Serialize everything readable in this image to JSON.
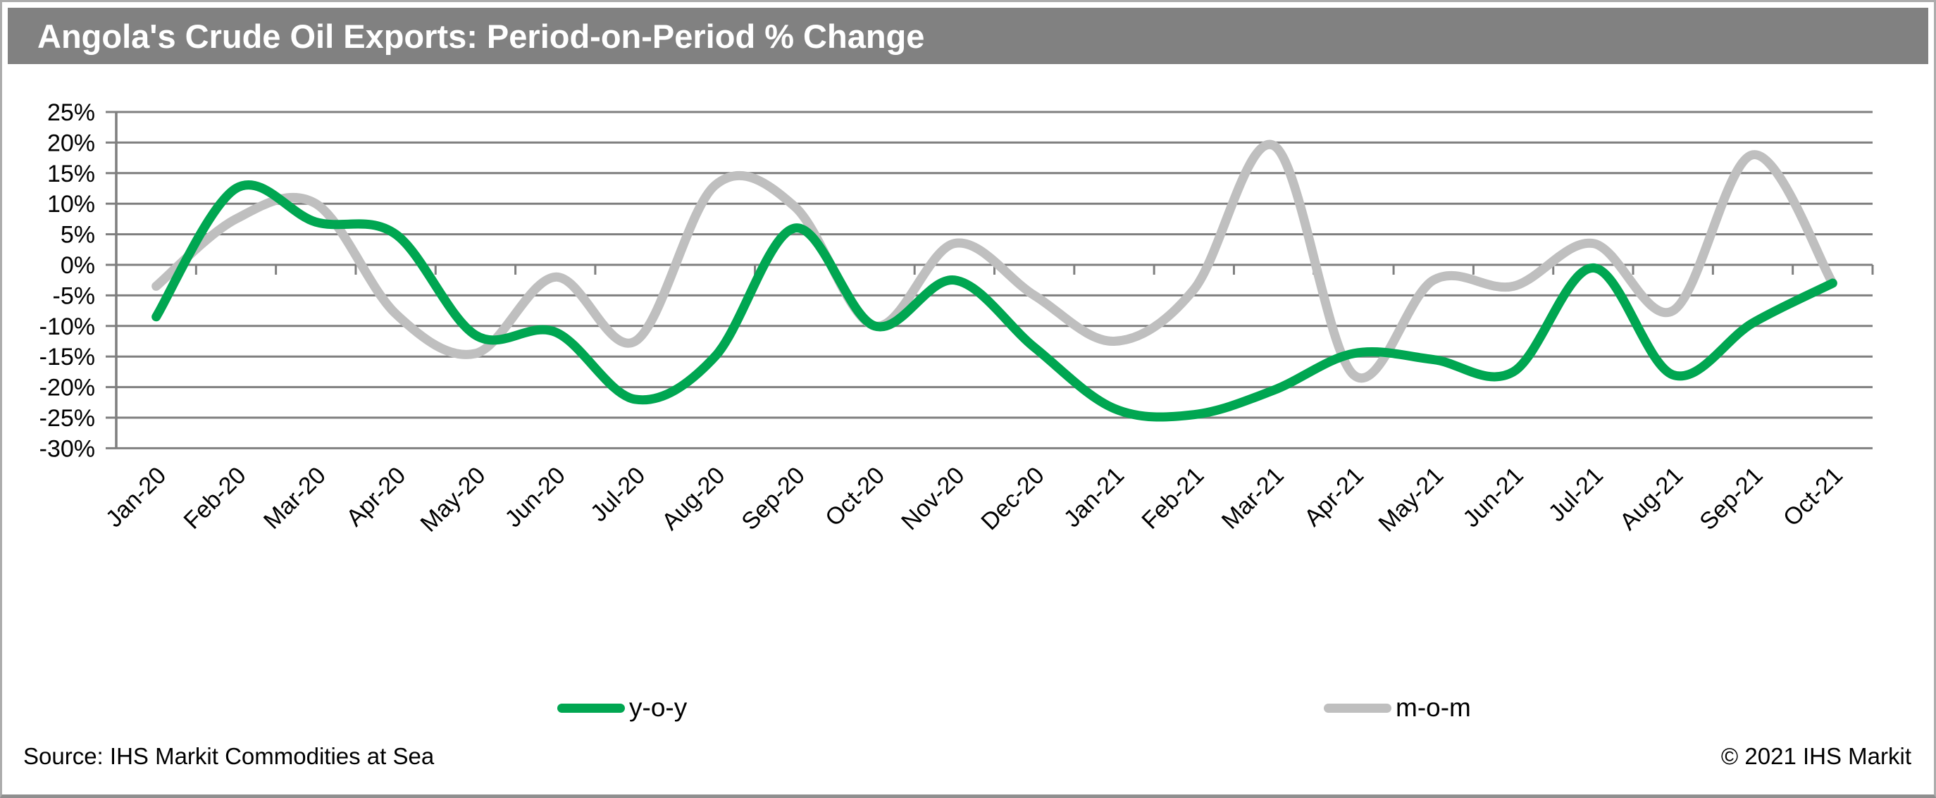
{
  "header": {
    "title": "Angola's Crude Oil Exports: Period-on-Period % Change"
  },
  "footer": {
    "source": "Source: IHS Markit Commodities at Sea",
    "copyright": "© 2021 IHS Markit"
  },
  "colors": {
    "title_bar_bg": "#818181",
    "title_text": "#FFFFFF",
    "gridline": "#7F7F7F",
    "axis_text": "#000000",
    "series_yoy": "#00A651",
    "series_mom": "#BFBFBF",
    "frame_border": "#ACACAC"
  },
  "chart_data": {
    "type": "line",
    "smooth": true,
    "grid": "horizontal",
    "legend_position": "bottom",
    "title": "Angola's Crude Oil Exports: Period-on-Period % Change",
    "xlabel": "",
    "ylabel": "",
    "ylim": [
      -30,
      25
    ],
    "ytick_step": 5,
    "yticks": [
      25,
      20,
      15,
      10,
      5,
      0,
      -5,
      -10,
      -15,
      -20,
      -25,
      -30
    ],
    "yticklabels": [
      "25%",
      "20%",
      "15%",
      "10%",
      "5%",
      "0%",
      "-5%",
      "-10%",
      "-15%",
      "-20%",
      "-25%",
      "-30%"
    ],
    "categories": [
      "Jan-20",
      "Feb-20",
      "Mar-20",
      "Apr-20",
      "May-20",
      "Jun-20",
      "Jul-20",
      "Aug-20",
      "Sep-20",
      "Oct-20",
      "Nov-20",
      "Dec-20",
      "Jan-21",
      "Feb-21",
      "Mar-21",
      "Apr-21",
      "May-21",
      "Jun-21",
      "Jul-21",
      "Aug-21",
      "Sep-21",
      "Oct-21"
    ],
    "series": [
      {
        "name": "y-o-y",
        "color": "#00A651",
        "values": [
          -8.5,
          12.5,
          7,
          5,
          -11.5,
          -11,
          -22,
          -15,
          6,
          -10,
          -2.5,
          -13.5,
          -23.5,
          -24.5,
          -20.5,
          -14.5,
          -15.5,
          -17.5,
          -0.5,
          -18,
          -9.5,
          -3
        ]
      },
      {
        "name": "m-o-m",
        "color": "#BFBFBF",
        "values": [
          -3.5,
          7.5,
          10,
          -8,
          -14.5,
          -2,
          -12.5,
          13,
          9.5,
          -10,
          3.5,
          -5,
          -12.5,
          -4,
          19.5,
          -18,
          -2.5,
          -3.5,
          3.5,
          -7.5,
          18,
          -3
        ]
      }
    ]
  }
}
